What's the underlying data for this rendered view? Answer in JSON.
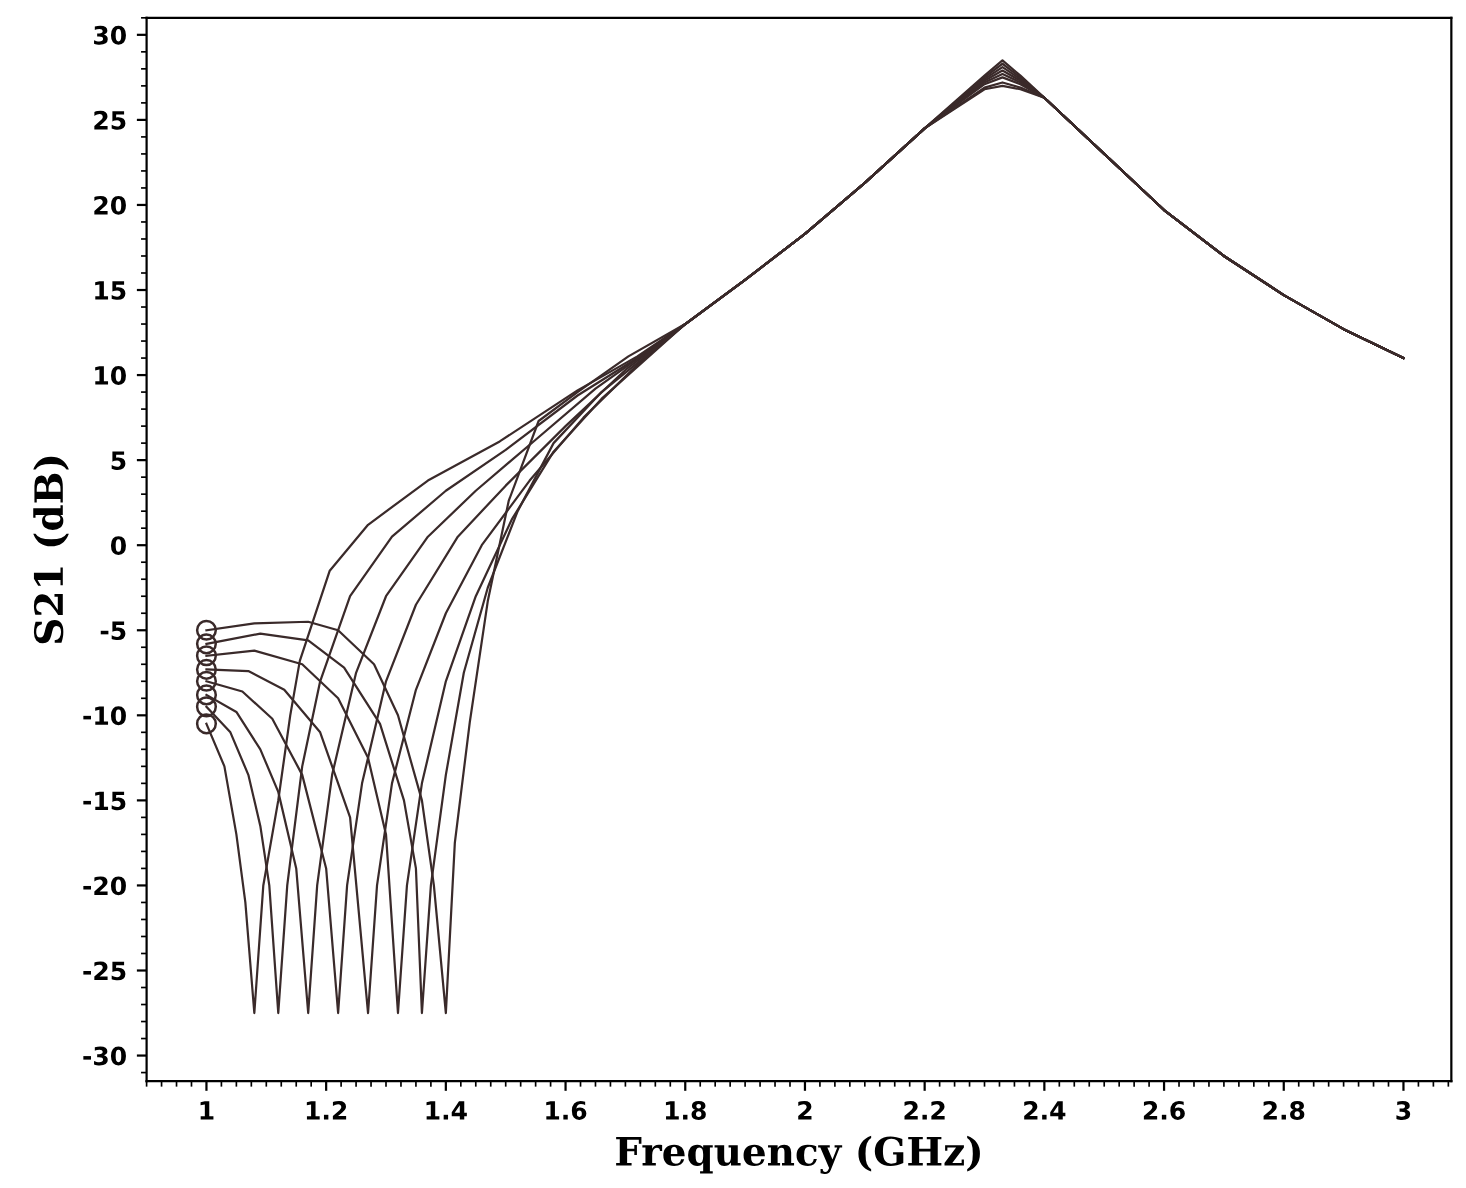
{
  "chart_data": {
    "type": "line",
    "xlabel": "Frequency (GHz)",
    "ylabel": "S21 (dB)",
    "xlim": [
      0.9,
      3.08
    ],
    "ylim": [
      -31.5,
      31
    ],
    "xticks": [
      1,
      1.2,
      1.4,
      1.6,
      1.8,
      2,
      2.2,
      2.4,
      2.6,
      2.8,
      3
    ],
    "yticks": [
      -30,
      -25,
      -20,
      -15,
      -10,
      -5,
      0,
      5,
      10,
      15,
      20,
      25,
      30
    ],
    "grid": false,
    "legend": false,
    "line_style": "solid",
    "series": [
      {
        "color": "#3a2a2a",
        "x": [
          1,
          1.03,
          1.05,
          1.065,
          1.08,
          1.095,
          1.12,
          1.14,
          1.156,
          1.206,
          1.27,
          1.37,
          1.49,
          1.62,
          1.72,
          1.8,
          1.9,
          2.0,
          2.1,
          2.2,
          2.3,
          2.33,
          2.36,
          2.4,
          2.5,
          2.6,
          2.7,
          2.8,
          2.9,
          3.0
        ],
        "values": [
          -10.5,
          -13,
          -17,
          -21,
          -27.5,
          -20,
          -15,
          -10,
          -6.8,
          -1.5,
          1.2,
          3.8,
          6.1,
          9.1,
          11.1,
          13,
          15.6,
          18.3,
          21.3,
          24.5,
          27.6,
          28.5,
          27.6,
          26.3,
          23,
          19.7,
          17,
          14.7,
          12.7,
          11.0
        ]
      },
      {
        "color": "#3a2a2a",
        "x": [
          1,
          1.04,
          1.07,
          1.09,
          1.105,
          1.12,
          1.135,
          1.16,
          1.19,
          1.24,
          1.31,
          1.4,
          1.5,
          1.62,
          1.72,
          1.8,
          1.9,
          2.0,
          2.1,
          2.2,
          2.3,
          2.33,
          2.36,
          2.4,
          2.5,
          2.6,
          2.7,
          2.8,
          2.9,
          3.0
        ],
        "values": [
          -9.5,
          -11,
          -13.5,
          -16.5,
          -20,
          -27.5,
          -20,
          -13,
          -8,
          -3,
          0.5,
          3.2,
          5.6,
          8.8,
          11,
          13,
          15.6,
          18.3,
          21.3,
          24.5,
          27.5,
          28.3,
          27.5,
          26.3,
          23,
          19.7,
          17,
          14.7,
          12.7,
          11.0
        ]
      },
      {
        "color": "#3a2a2a",
        "x": [
          1,
          1.05,
          1.09,
          1.12,
          1.15,
          1.17,
          1.185,
          1.21,
          1.25,
          1.3,
          1.37,
          1.45,
          1.55,
          1.65,
          1.73,
          1.8,
          1.9,
          2.0,
          2.1,
          2.2,
          2.3,
          2.33,
          2.36,
          2.4,
          2.5,
          2.6,
          2.7,
          2.8,
          2.9,
          3.0
        ],
        "values": [
          -8.8,
          -9.8,
          -12,
          -14.5,
          -19,
          -27.5,
          -20,
          -13.5,
          -7.5,
          -3,
          0.5,
          3.2,
          6.2,
          9.2,
          11.2,
          13,
          15.6,
          18.3,
          21.3,
          24.5,
          27.4,
          28.1,
          27.4,
          26.3,
          23,
          19.7,
          17,
          14.7,
          12.7,
          11.0
        ]
      },
      {
        "color": "#3a2a2a",
        "x": [
          1,
          1.06,
          1.11,
          1.16,
          1.2,
          1.22,
          1.235,
          1.26,
          1.3,
          1.35,
          1.42,
          1.5,
          1.6,
          1.7,
          1.8,
          1.9,
          2.0,
          2.1,
          2.2,
          2.3,
          2.33,
          2.36,
          2.4,
          2.5,
          2.6,
          2.7,
          2.8,
          2.9,
          3.0
        ],
        "values": [
          -8,
          -8.6,
          -10.2,
          -13.5,
          -19,
          -27.5,
          -20,
          -14,
          -8,
          -3.5,
          0.5,
          3.5,
          7,
          10.3,
          13,
          15.6,
          18.3,
          21.3,
          24.5,
          27.3,
          27.9,
          27.3,
          26.3,
          23,
          19.7,
          17,
          14.7,
          12.7,
          11.0
        ]
      },
      {
        "color": "#3a2a2a",
        "x": [
          1,
          1.07,
          1.13,
          1.19,
          1.24,
          1.27,
          1.285,
          1.31,
          1.35,
          1.4,
          1.46,
          1.54,
          1.63,
          1.72,
          1.8,
          1.9,
          2.0,
          2.1,
          2.2,
          2.3,
          2.33,
          2.36,
          2.4,
          2.5,
          2.6,
          2.7,
          2.8,
          2.9,
          3.0
        ],
        "values": [
          -7.3,
          -7.4,
          -8.5,
          -11,
          -16,
          -27.5,
          -20,
          -14,
          -8.5,
          -4,
          0,
          3.8,
          7.5,
          10.6,
          13,
          15.6,
          18.3,
          21.3,
          24.5,
          27.2,
          27.7,
          27.2,
          26.3,
          23,
          19.7,
          17,
          14.7,
          12.7,
          11.0
        ]
      },
      {
        "color": "#3a2a2a",
        "x": [
          1,
          1.08,
          1.16,
          1.22,
          1.27,
          1.3,
          1.32,
          1.335,
          1.36,
          1.4,
          1.45,
          1.51,
          1.58,
          1.66,
          1.73,
          1.8,
          1.9,
          2.0,
          2.1,
          2.2,
          2.3,
          2.33,
          2.36,
          2.4,
          2.5,
          2.6,
          2.7,
          2.8,
          2.9,
          3.0
        ],
        "values": [
          -6.5,
          -6.2,
          -7,
          -9,
          -12.5,
          -17,
          -27.5,
          -20,
          -14,
          -8,
          -3,
          1.5,
          5.5,
          8.6,
          10.8,
          13,
          15.6,
          18.3,
          21.3,
          24.5,
          27.1,
          27.5,
          27.1,
          26.3,
          23,
          19.7,
          17,
          14.7,
          12.7,
          11.0
        ]
      },
      {
        "color": "#3a2a2a",
        "x": [
          1,
          1.09,
          1.17,
          1.23,
          1.29,
          1.33,
          1.35,
          1.36,
          1.375,
          1.4,
          1.43,
          1.47,
          1.52,
          1.58,
          1.66,
          1.73,
          1.8,
          1.9,
          2.0,
          2.1,
          2.2,
          2.3,
          2.33,
          2.36,
          2.4,
          2.5,
          2.6,
          2.7,
          2.8,
          2.9,
          3.0
        ],
        "values": [
          -5.8,
          -5.2,
          -5.6,
          -7.2,
          -10.5,
          -15,
          -19,
          -27.5,
          -20,
          -13.5,
          -7.5,
          -2.5,
          2,
          6,
          9,
          11,
          13,
          15.6,
          18.3,
          21.3,
          24.5,
          26.9,
          27.2,
          26.9,
          26.3,
          23,
          19.7,
          17,
          14.7,
          12.7,
          11.0
        ]
      },
      {
        "color": "#3a2a2a",
        "x": [
          1,
          1.08,
          1.17,
          1.22,
          1.28,
          1.32,
          1.36,
          1.38,
          1.4,
          1.415,
          1.44,
          1.47,
          1.505,
          1.555,
          1.62,
          1.705,
          1.8,
          1.9,
          2.0,
          2.1,
          2.2,
          2.3,
          2.33,
          2.36,
          2.4,
          2.5,
          2.6,
          2.7,
          2.8,
          2.9,
          3.0
        ],
        "values": [
          -5,
          -4.6,
          -4.5,
          -5,
          -7,
          -10,
          -15,
          -20,
          -27.5,
          -17.5,
          -10.4,
          -3.3,
          2.6,
          7.3,
          9.0,
          11.1,
          13,
          15.6,
          18.3,
          21.3,
          24.5,
          26.8,
          27.0,
          26.8,
          26.3,
          23,
          19.7,
          17,
          14.7,
          12.7,
          11.0
        ]
      },
      {
        "type": "scatter",
        "marker": "circle",
        "color": "#3a2a2a",
        "x": [
          1,
          1,
          1,
          1,
          1,
          1,
          1,
          1
        ],
        "values": [
          -10.5,
          -9.5,
          -8.8,
          -8,
          -7.3,
          -6.5,
          -5.8,
          -5
        ]
      }
    ]
  }
}
